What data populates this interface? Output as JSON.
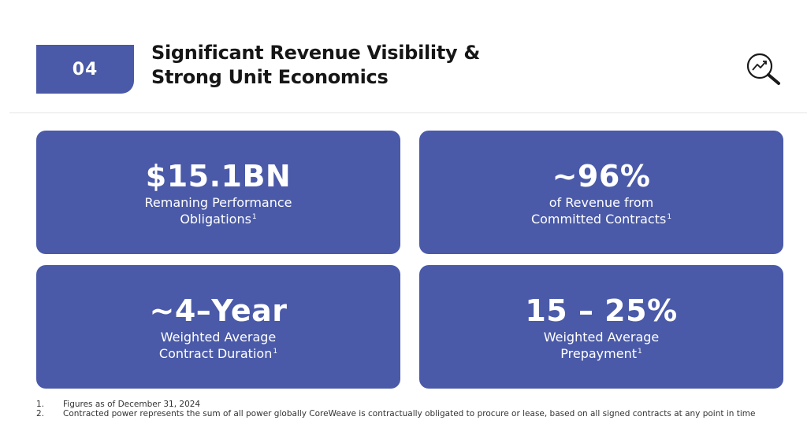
{
  "header": {
    "section_number": "04",
    "title_line1": "Significant Revenue Visibility &",
    "title_line2": "Strong Unit Economics",
    "icon": "magnifier-trend-icon"
  },
  "cards": [
    {
      "value": "$15.1BN",
      "line1": "Remaning Performance",
      "line2": "Obligations",
      "sup": "1"
    },
    {
      "value": "~96%",
      "line1": "of Revenue from",
      "line2": "Committed Contracts",
      "sup": "1"
    },
    {
      "value": "~4–Year",
      "line1": "Weighted Average",
      "line2": "Contract Duration",
      "sup": "1"
    },
    {
      "value": "15 – 25%",
      "line1": "Weighted Average",
      "line2": "Prepayment",
      "sup": "1"
    }
  ],
  "footnotes": [
    {
      "num": "1.",
      "text": "Figures as of December 31, 2024"
    },
    {
      "num": "2.",
      "text": "Contracted power represents the sum of all power globally CoreWeave is contractually obligated to procure or lease, based on all signed contracts at any point in time"
    }
  ],
  "colors": {
    "accent": "#4a5aa8",
    "text": "#161616",
    "background": "#ffffff"
  }
}
